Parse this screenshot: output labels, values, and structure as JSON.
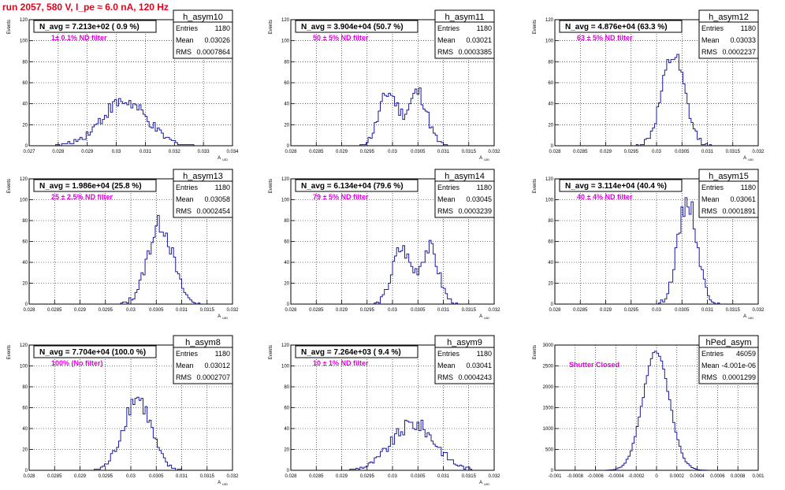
{
  "run_title": "run 2057,   580 V, I_pe ≈ 6.0 nA, 120 Hz",
  "colors": {
    "title": "#e8001a",
    "note": "#e000e0",
    "hist": "#1a1aa0",
    "grid": "#000000"
  },
  "chart_data": [
    {
      "type": "bar",
      "name": "h_asym10",
      "avg_text": "N_avg = 7.213e+02 ( 0.9 %)",
      "filter_text": "1± 0.1% ND filter",
      "stats": [
        [
          "Entries",
          "1180"
        ],
        [
          "Mean",
          "0.03026"
        ],
        [
          "RMS",
          "0.0007864"
        ]
      ],
      "xlabel": "A_UID",
      "ylabel": "Events",
      "xlim": [
        0.027,
        0.034
      ],
      "ylim": [
        0,
        120
      ],
      "xticks": [
        "0.027",
        "0.028",
        "0.029",
        "0.03",
        "0.031",
        "0.032",
        "0.033",
        "0.034"
      ],
      "yticks": [
        "0",
        "20",
        "40",
        "60",
        "80",
        "100",
        "120"
      ],
      "mean": 0.03026,
      "rms": 0.0007864,
      "entries": 1180,
      "seed": 10,
      "shape": "gauss",
      "bins": 100
    },
    {
      "type": "bar",
      "name": "h_asym11",
      "avg_text": "N_avg = 3.904e+04 (50.7 %)",
      "filter_text": "50 ± 5% ND filter",
      "stats": [
        [
          "Entries",
          "1180"
        ],
        [
          "Mean",
          "0.03021"
        ],
        [
          "RMS",
          "0.0003385"
        ]
      ],
      "xlabel": "A_UID",
      "ylabel": "Events",
      "xlim": [
        0.028,
        0.032
      ],
      "ylim": [
        0,
        120
      ],
      "xticks": [
        "0.028",
        "0.0285",
        "0.029",
        "0.0295",
        "0.03",
        "0.0305",
        "0.031",
        "0.0315",
        "0.032"
      ],
      "yticks": [
        "0",
        "20",
        "40",
        "60",
        "80",
        "100",
        "120"
      ],
      "mean": 0.03021,
      "rms": 0.0003385,
      "entries": 1180,
      "seed": 11,
      "shape": "bimodal",
      "bins": 100
    },
    {
      "type": "bar",
      "name": "h_asym12",
      "avg_text": "N_avg = 4.876e+04 (63.3 %)",
      "filter_text": "63 ± 5% ND filter",
      "stats": [
        [
          "Entries",
          "1180"
        ],
        [
          "Mean",
          "0.03033"
        ],
        [
          "RMS",
          "0.0002237"
        ]
      ],
      "xlabel": "A_UID",
      "ylabel": "Events",
      "xlim": [
        0.028,
        0.032
      ],
      "ylim": [
        0,
        120
      ],
      "xticks": [
        "0.028",
        "0.0285",
        "0.029",
        "0.0295",
        "0.03",
        "0.0305",
        "0.031",
        "0.0315",
        "0.032"
      ],
      "yticks": [
        "0",
        "20",
        "40",
        "60",
        "80",
        "100",
        "120"
      ],
      "mean": 0.03033,
      "rms": 0.0002237,
      "entries": 1180,
      "seed": 12,
      "shape": "gauss",
      "bins": 100
    },
    {
      "type": "bar",
      "name": "h_asym13",
      "avg_text": "N_avg = 1.986e+04 (25.8 %)",
      "filter_text": "25 ± 2.5% ND filter",
      "stats": [
        [
          "Entries",
          "1180"
        ],
        [
          "Mean",
          "0.03058"
        ],
        [
          "RMS",
          "0.0002454"
        ]
      ],
      "xlabel": "A_UID",
      "ylabel": "Events",
      "xlim": [
        0.028,
        0.032
      ],
      "ylim": [
        0,
        120
      ],
      "xticks": [
        "0.028",
        "0.0285",
        "0.029",
        "0.0295",
        "0.03",
        "0.0305",
        "0.031",
        "0.0315",
        "0.032"
      ],
      "yticks": [
        "0",
        "20",
        "40",
        "60",
        "80",
        "100",
        "120"
      ],
      "mean": 0.03058,
      "rms": 0.0002454,
      "entries": 1180,
      "seed": 13,
      "shape": "gauss",
      "bins": 100
    },
    {
      "type": "bar",
      "name": "h_asym14",
      "avg_text": "N_avg = 6.134e+04 (79.6 %)",
      "filter_text": "79 ± 5% ND filter",
      "stats": [
        [
          "Entries",
          "1180"
        ],
        [
          "Mean",
          "0.03045"
        ],
        [
          "RMS",
          "0.0003239"
        ]
      ],
      "xlabel": "A_UID",
      "ylabel": "Events",
      "xlim": [
        0.028,
        0.032
      ],
      "ylim": [
        0,
        120
      ],
      "xticks": [
        "0.028",
        "0.0285",
        "0.029",
        "0.0295",
        "0.03",
        "0.0305",
        "0.031",
        "0.0315",
        "0.032"
      ],
      "yticks": [
        "0",
        "20",
        "40",
        "60",
        "80",
        "100",
        "120"
      ],
      "mean": 0.03045,
      "rms": 0.0003239,
      "entries": 1180,
      "seed": 14,
      "shape": "bimodal",
      "bins": 100
    },
    {
      "type": "bar",
      "name": "h_asym15",
      "avg_text": "N_avg = 3.114e+04 (40.4 %)",
      "filter_text": "40 ± 4% ND filter",
      "stats": [
        [
          "Entries",
          "1180"
        ],
        [
          "Mean",
          "0.03061"
        ],
        [
          "RMS",
          "0.0001891"
        ]
      ],
      "xlabel": "A_UID",
      "ylabel": "Events",
      "xlim": [
        0.028,
        0.032
      ],
      "ylim": [
        0,
        120
      ],
      "xticks": [
        "0.028",
        "0.0285",
        "0.029",
        "0.0295",
        "0.03",
        "0.0305",
        "0.031",
        "0.0315",
        "0.032"
      ],
      "yticks": [
        "0",
        "20",
        "40",
        "60",
        "80",
        "100",
        "120"
      ],
      "mean": 0.03061,
      "rms": 0.0001891,
      "entries": 1180,
      "seed": 15,
      "shape": "gauss",
      "bins": 100
    },
    {
      "type": "bar",
      "name": "h_asym8",
      "avg_text": "N_avg = 7.704e+04 (100.0 %)",
      "filter_text": "100% (No filter)",
      "stats": [
        [
          "Entries",
          "1180"
        ],
        [
          "Mean",
          "0.03012"
        ],
        [
          "RMS",
          "0.0002707"
        ]
      ],
      "xlabel": "A_UID",
      "ylabel": "Events",
      "xlim": [
        0.028,
        0.032
      ],
      "ylim": [
        0,
        120
      ],
      "xticks": [
        "0.028",
        "0.0285",
        "0.029",
        "0.0295",
        "0.03",
        "0.0305",
        "0.031",
        "0.0315",
        "0.032"
      ],
      "yticks": [
        "0",
        "20",
        "40",
        "60",
        "80",
        "100",
        "120"
      ],
      "mean": 0.03012,
      "rms": 0.0002707,
      "entries": 1180,
      "seed": 8,
      "shape": "gauss",
      "bins": 100
    },
    {
      "type": "bar",
      "name": "h_asym9",
      "avg_text": "N_avg = 7.264e+03 ( 9.4 %)",
      "filter_text": "10 ± 1% ND filter",
      "stats": [
        [
          "Entries",
          "1180"
        ],
        [
          "Mean",
          "0.03041"
        ],
        [
          "RMS",
          "0.0004243"
        ]
      ],
      "xlabel": "A_UID",
      "ylabel": "Events",
      "xlim": [
        0.028,
        0.032
      ],
      "ylim": [
        0,
        120
      ],
      "xticks": [
        "0.028",
        "0.0285",
        "0.029",
        "0.0295",
        "0.03",
        "0.0305",
        "0.031",
        "0.0315",
        "0.032"
      ],
      "yticks": [
        "0",
        "20",
        "40",
        "60",
        "80",
        "100",
        "120"
      ],
      "mean": 0.03041,
      "rms": 0.0004243,
      "entries": 1180,
      "seed": 9,
      "shape": "gauss",
      "bins": 100
    },
    {
      "type": "bar",
      "name": "hPed_asym",
      "avg_text": "",
      "filter_text": "Shutter Closed",
      "stats": [
        [
          "Entries",
          "46059"
        ],
        [
          "Mean",
          "-4.001e-06"
        ],
        [
          "RMS",
          "0.0001299"
        ]
      ],
      "xlabel": "",
      "ylabel": "Events",
      "xlim": [
        -0.001,
        0.001
      ],
      "ylim": [
        0,
        3000
      ],
      "xticks": [
        "-0.001",
        "-0.0008",
        "-0.0006",
        "-0.0004",
        "-0.0002",
        "0",
        "0.0002",
        "0.0004",
        "0.0006",
        "0.0008",
        "0.001"
      ],
      "yticks": [
        "0",
        "500",
        "1000",
        "1500",
        "2000",
        "2500",
        "3000"
      ],
      "mean": -4e-06,
      "rms": 0.0001299,
      "entries": 46059,
      "seed": 99,
      "shape": "gauss",
      "bins": 100
    }
  ]
}
